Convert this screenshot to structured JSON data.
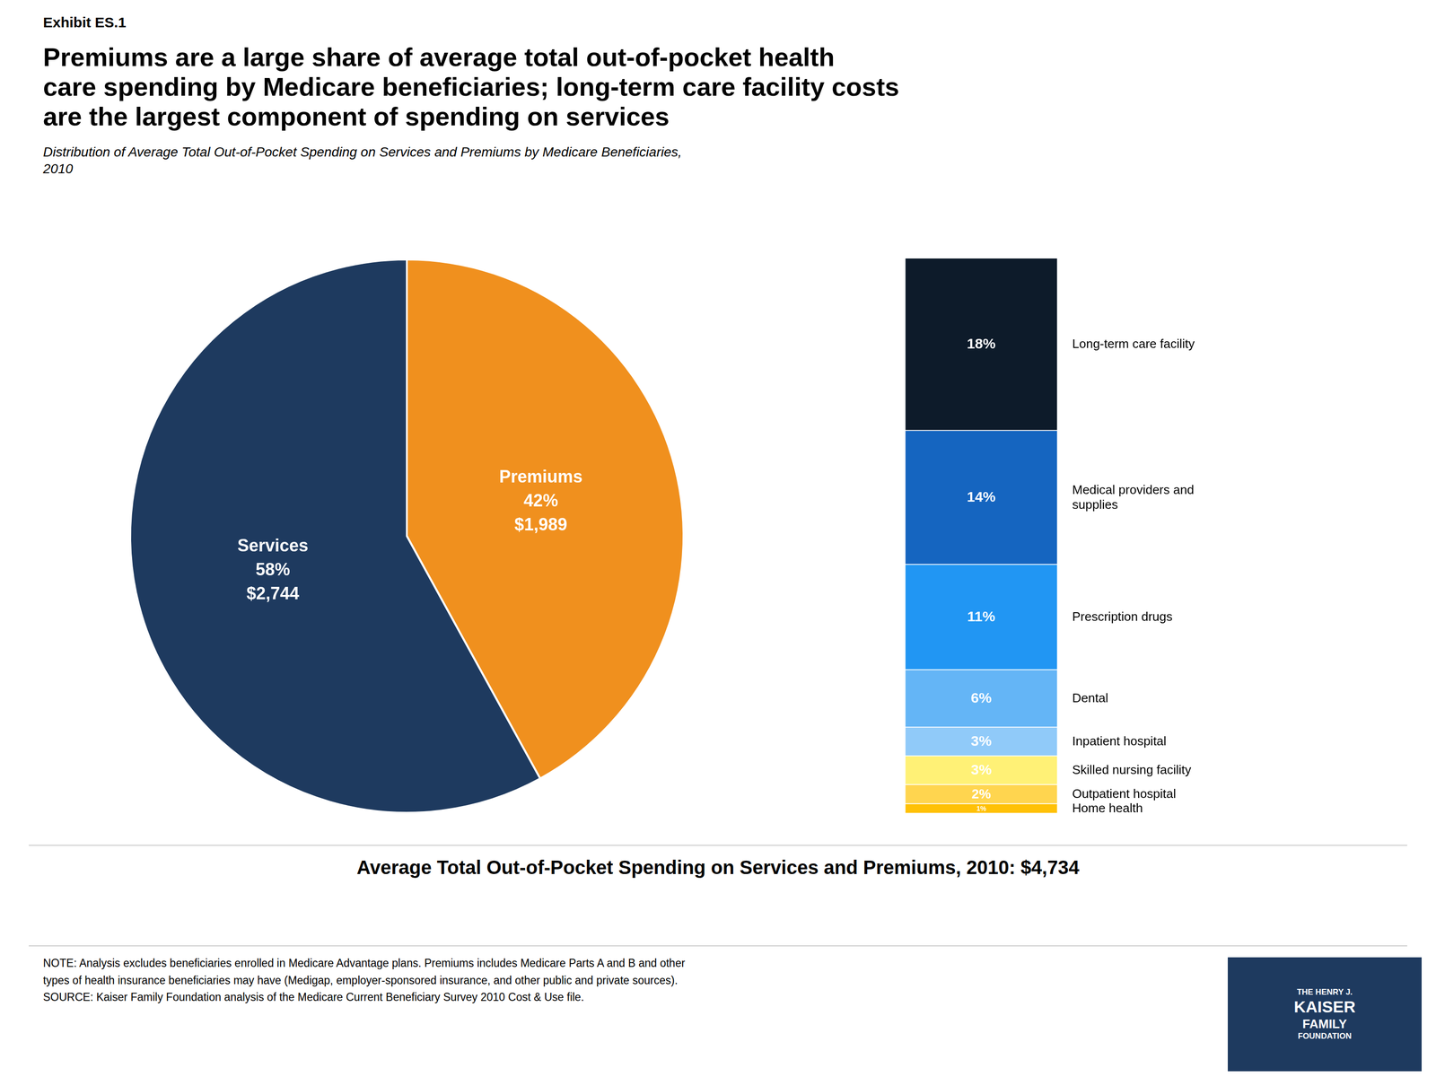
{
  "chart_data": [
    {
      "type": "pie",
      "title": "Premiums are a large share of average total out-of-pocket health\ncare spending by Medicare beneficiaries; long-term care facility costs\nare the largest component of spending on services",
      "subtitle": "Distribution of Average Total Out-of-Pocket Spending on Services and Premiums by Medicare Beneficiaries,\n2010",
      "annotations": [
        "Exhibit ES.1",
        "Average Total Out-of-Pocket Spending on Services and Premiums, 2010:  $4,734",
        "NOTE: Analysis excludes beneficiaries enrolled in Medicare Advantage plans. Premiums includes Medicare Parts A and B and other\ntypes of health insurance beneficiaries may have (Medigap, employer-sponsored insurance, and other public and private sources).\nSOURCE: Kaiser Family Foundation analysis of the Medicare Current Beneficiary Survey 2010 Cost & Use file.",
        "THE HENRY J.",
        "KAISER",
        "FAMILY",
        "FOUNDATION"
      ],
      "categories": [
        "Premiums",
        "Services"
      ],
      "values": [
        42,
        58
      ],
      "value_labels": [
        "42%",
        "58%"
      ],
      "amount_labels": [
        "$1,989",
        "$2,744"
      ],
      "colors": [
        "#F0901E",
        "#1E3A5F"
      ],
      "data_labels": true
    },
    {
      "type": "bar",
      "stacked": true,
      "categories": [
        null
      ],
      "series": [
        {
          "name": "Long-term care facility",
          "color": "#0D1B2A",
          "values": [
            18
          ],
          "value_labels": [
            "18%"
          ]
        },
        {
          "name": "Medical providers and\nsupplies",
          "color": "#1565C0",
          "values": [
            14
          ],
          "value_labels": [
            "14%"
          ]
        },
        {
          "name": "Prescription drugs",
          "color": "#2196F3",
          "values": [
            11
          ],
          "value_labels": [
            "11%"
          ]
        },
        {
          "name": "Dental",
          "color": "#64B5F6",
          "values": [
            6
          ],
          "value_labels": [
            "6%"
          ]
        },
        {
          "name": "Inpatient hospital",
          "color": "#90CAF9",
          "values": [
            3
          ],
          "value_labels": [
            "3%"
          ]
        },
        {
          "name": "Skilled nursing facility",
          "color": "#FFF176",
          "values": [
            3
          ],
          "value_labels": [
            "3%"
          ]
        },
        {
          "name": "Outpatient hospital",
          "color": "#FFD54F",
          "values": [
            2
          ],
          "value_labels": [
            "2%"
          ]
        },
        {
          "name": "Home health",
          "color": "#FFC107",
          "values": [
            1
          ],
          "value_labels": [
            "1%"
          ]
        }
      ],
      "ylim": [
        0,
        58
      ],
      "tick_labels": false,
      "grid": false,
      "data_labels": true
    }
  ]
}
